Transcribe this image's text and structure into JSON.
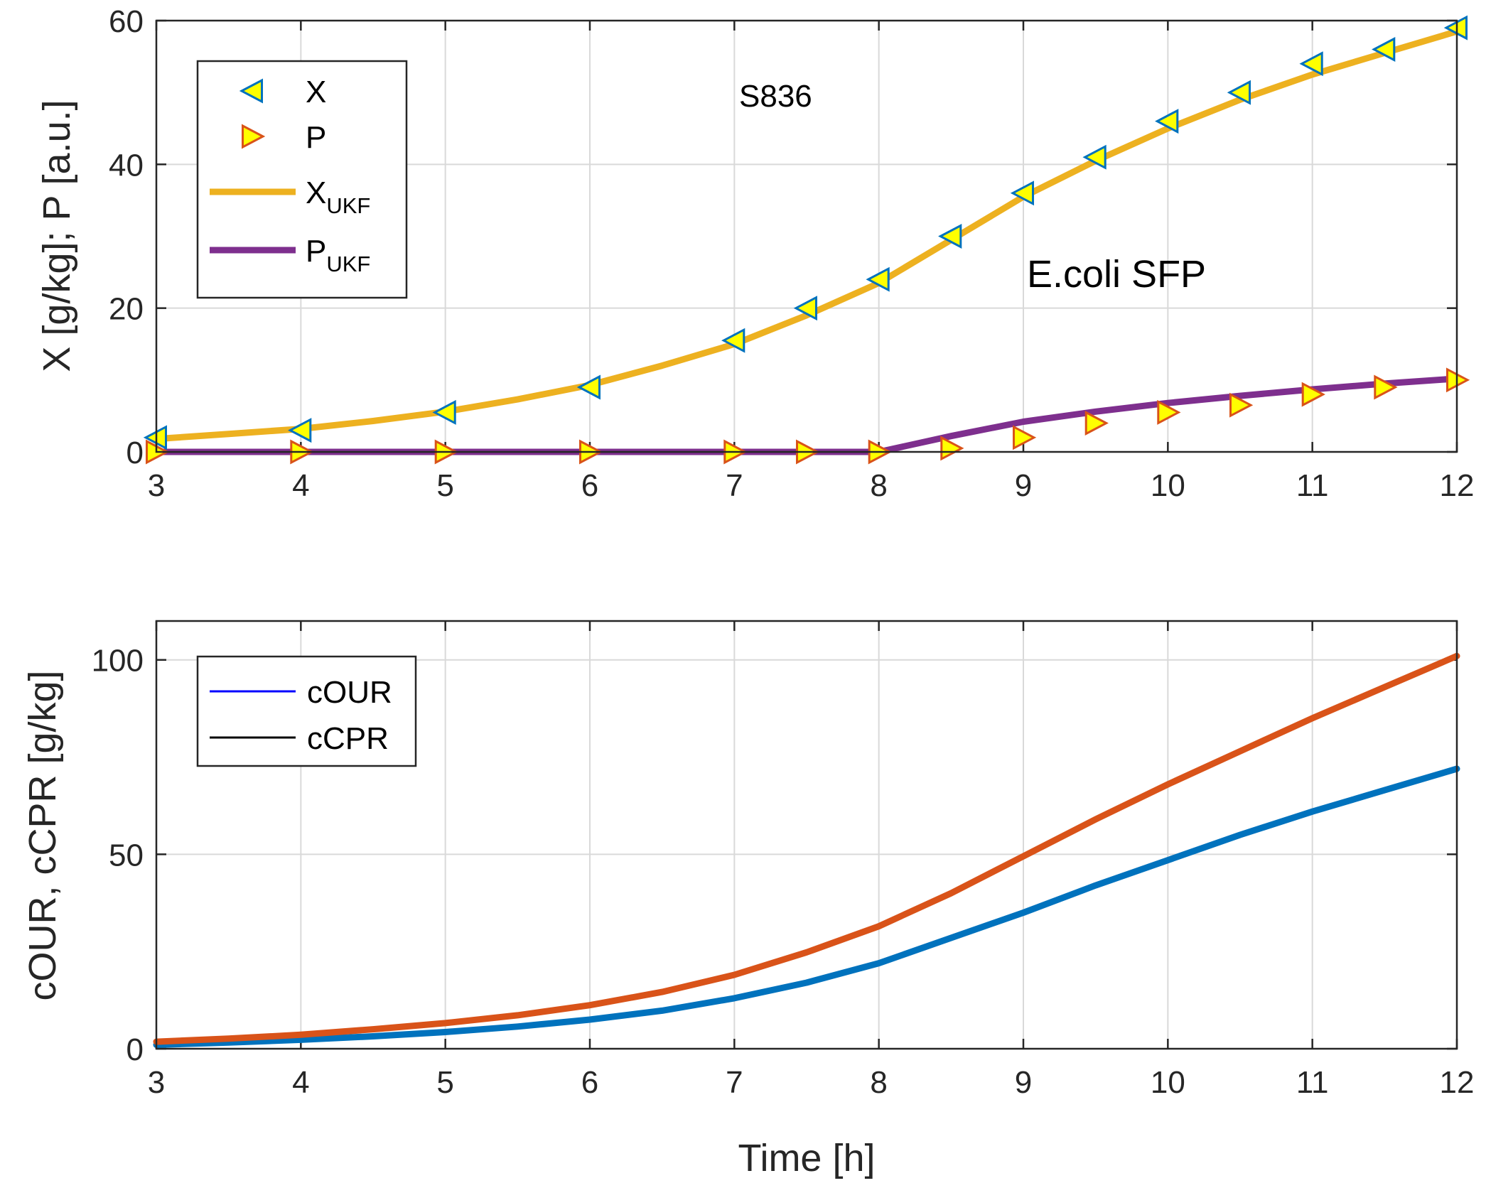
{
  "chart_data": [
    {
      "type": "line",
      "xlabel": "",
      "ylabel": "X [g/kg]; P [a.u.]",
      "xlim": [
        3,
        12
      ],
      "ylim": [
        0,
        60
      ],
      "xticks": [
        3,
        4,
        5,
        6,
        7,
        8,
        9,
        10,
        11,
        12
      ],
      "yticks": [
        0,
        20,
        40,
        60
      ],
      "grid": true,
      "legend_position": "top-left",
      "annotations": [
        "S836",
        "E.coli SFP"
      ],
      "series": [
        {
          "name": "X",
          "kind": "markers",
          "marker": "triangle-left",
          "color": "#0072BD",
          "fill": "#FFFF00",
          "x": [
            3,
            4,
            5,
            6,
            7,
            7.5,
            8,
            8.5,
            9,
            9.5,
            10,
            10.5,
            11,
            11.5,
            12
          ],
          "y": [
            2,
            3,
            5.5,
            9,
            15.5,
            20,
            24,
            30,
            36,
            41,
            46,
            50,
            54,
            56,
            59
          ]
        },
        {
          "name": "P",
          "kind": "markers",
          "marker": "triangle-right",
          "color": "#D95319",
          "fill": "#FFFF00",
          "x": [
            3,
            4,
            5,
            6,
            7,
            7.5,
            8,
            8.5,
            9,
            9.5,
            10,
            10.5,
            11,
            11.5,
            12
          ],
          "y": [
            0,
            0,
            0,
            0,
            0,
            0,
            0,
            0.5,
            2,
            4,
            5.5,
            6.5,
            8,
            9,
            10
          ]
        },
        {
          "name": "X",
          "sub": "UKF",
          "kind": "line",
          "color": "#EDB120",
          "x": [
            3,
            3.5,
            4,
            4.5,
            5,
            5.5,
            6,
            6.5,
            7,
            7.5,
            8,
            8.5,
            9,
            9.5,
            10,
            10.5,
            11,
            11.5,
            12
          ],
          "y": [
            1.8,
            2.5,
            3.2,
            4.3,
            5.6,
            7.3,
            9.3,
            12,
            15,
            19,
            23.5,
            29.5,
            35.5,
            40.5,
            45,
            49,
            52.5,
            55.5,
            58.5
          ]
        },
        {
          "name": "P",
          "sub": "UKF",
          "kind": "line",
          "color": "#7E2F8E",
          "x": [
            3,
            4,
            5,
            6,
            7,
            7.5,
            8,
            8.5,
            9,
            9.5,
            10,
            10.5,
            11,
            11.5,
            12
          ],
          "y": [
            0,
            0,
            0,
            0,
            0,
            0,
            0,
            2.2,
            4.2,
            5.6,
            6.8,
            7.8,
            8.7,
            9.5,
            10.2
          ]
        }
      ]
    },
    {
      "type": "line",
      "xlabel": "Time [h]",
      "ylabel": "cOUR, cCPR [g/kg]",
      "xlim": [
        3,
        12
      ],
      "ylim": [
        0,
        110
      ],
      "xticks": [
        3,
        4,
        5,
        6,
        7,
        8,
        9,
        10,
        11,
        12
      ],
      "yticks": [
        0,
        50,
        100
      ],
      "grid": true,
      "legend_position": "top-left",
      "legend": [
        {
          "label": "cOUR",
          "color": "#0000FF"
        },
        {
          "label": "cCPR",
          "color": "#000000"
        }
      ],
      "series": [
        {
          "label": "cOUR",
          "color": "#0072BD",
          "x": [
            3,
            3.5,
            4,
            4.5,
            5,
            5.5,
            6,
            6.5,
            7,
            7.5,
            8,
            8.5,
            9,
            9.5,
            10,
            10.5,
            11,
            11.5,
            12
          ],
          "y": [
            1,
            1.6,
            2.3,
            3.2,
            4.3,
            5.7,
            7.5,
            9.8,
            13,
            17,
            22,
            28.5,
            35,
            42,
            48.5,
            55,
            61,
            66.5,
            72
          ]
        },
        {
          "label": "cCPR",
          "color": "#D95319",
          "x": [
            3,
            3.5,
            4,
            4.5,
            5,
            5.5,
            6,
            6.5,
            7,
            7.5,
            8,
            8.5,
            9,
            9.5,
            10,
            10.5,
            11,
            11.5,
            12
          ],
          "y": [
            1.8,
            2.6,
            3.6,
            5,
            6.6,
            8.6,
            11.2,
            14.6,
            19,
            24.8,
            31.5,
            40,
            49.5,
            59,
            68,
            76.5,
            85,
            93,
            101
          ]
        }
      ]
    }
  ]
}
